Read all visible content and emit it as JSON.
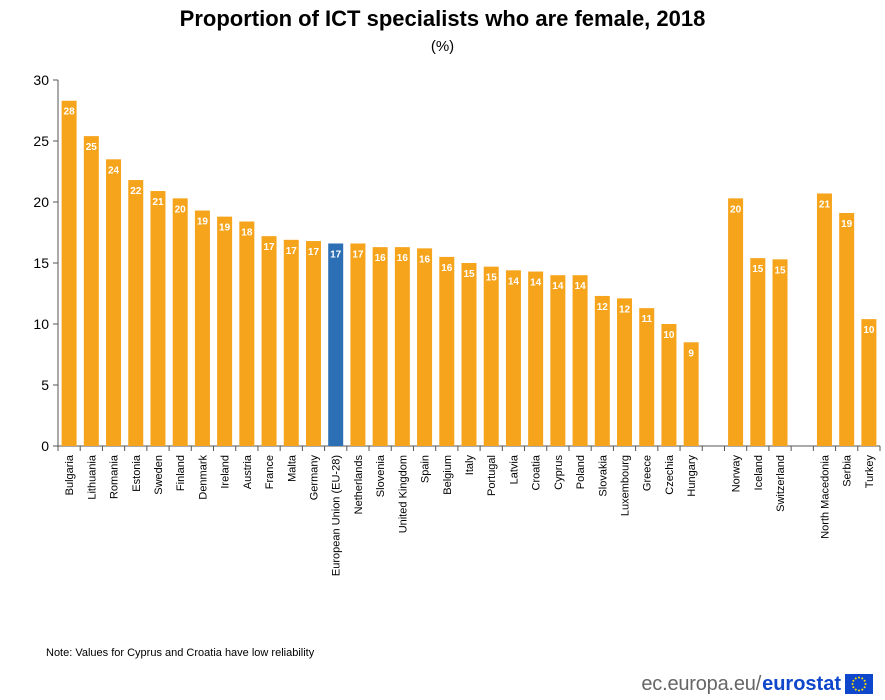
{
  "chart_data": {
    "type": "bar",
    "title": "Proportion of ICT specialists who are female, 2018",
    "subtitle": "(%)",
    "ylim": [
      0,
      30
    ],
    "yticks": [
      0,
      5,
      10,
      15,
      20,
      25,
      30
    ],
    "grid": false,
    "categories": [
      "Bulgaria",
      "Lithuania",
      "Romania",
      "Estonia",
      "Sweden",
      "Finland",
      "Denmark",
      "Ireland",
      "Austria",
      "France",
      "Malta",
      "Germany",
      "European Union (EU-28)",
      "Netherlands",
      "Slovenia",
      "United Kingdom",
      "Spain",
      "Belgium",
      "Italy",
      "Portugal",
      "Latvia",
      "Croatia",
      "Cyprus",
      "Poland",
      "Slovakia",
      "Luxembourg",
      "Greece",
      "Czechia",
      "Hungary",
      "",
      "Norway",
      "Iceland",
      "Switzerland",
      "",
      "North Macedonia",
      "Serbia",
      "Turkey"
    ],
    "values": [
      28.3,
      25.4,
      23.5,
      21.8,
      20.9,
      20.3,
      19.3,
      18.8,
      18.4,
      17.2,
      16.9,
      16.8,
      16.6,
      16.6,
      16.3,
      16.3,
      16.2,
      15.5,
      15.0,
      14.7,
      14.4,
      14.3,
      14.0,
      14.0,
      12.3,
      12.1,
      11.3,
      10.0,
      8.5,
      null,
      20.3,
      15.4,
      15.3,
      null,
      20.7,
      19.1,
      10.4
    ],
    "labels": [
      "28",
      "25",
      "24",
      "22",
      "21",
      "20",
      "19",
      "19",
      "18",
      "17",
      "17",
      "17",
      "17",
      "17",
      "16",
      "16",
      "16",
      "16",
      "15",
      "15",
      "14",
      "14",
      "14",
      "14",
      "12",
      "12",
      "11",
      "10",
      "9",
      "",
      "20",
      "15",
      "15",
      "",
      "21",
      "19",
      "10"
    ],
    "highlight_index": 12,
    "colors": {
      "bar": "#f6a41c",
      "highlight": "#2d6fb5",
      "axis": "#555555"
    }
  },
  "note": "Note: Values for Cyprus and Croatia have low reliability",
  "branding": {
    "url": "ec.europa.eu/",
    "name": "eurostat"
  }
}
